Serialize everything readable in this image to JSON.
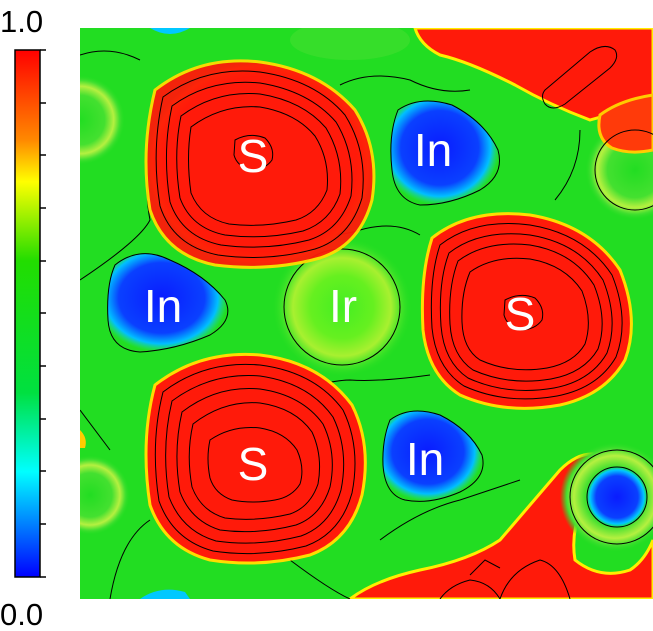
{
  "colorbar": {
    "max_label": "1.0",
    "min_label": "0.0",
    "range": [
      0.0,
      1.0
    ],
    "gradient_stops": [
      {
        "value": 0.0,
        "color": "#0000ff"
      },
      {
        "value": 0.2,
        "color": "#00ffff"
      },
      {
        "value": 0.35,
        "color": "#00e040"
      },
      {
        "value": 0.6,
        "color": "#22dd00"
      },
      {
        "value": 0.75,
        "color": "#ffff00"
      },
      {
        "value": 0.83,
        "color": "#ff8800"
      },
      {
        "value": 1.0,
        "color": "#ff0000"
      }
    ],
    "tick_count": 11
  },
  "map": {
    "background_color": "#22dd22",
    "high_color": "#ff1a0a",
    "low_color": "#0a28ff",
    "atoms": [
      {
        "label": "S",
        "type": "S"
      },
      {
        "label": "In",
        "type": "In"
      },
      {
        "label": "In",
        "type": "In"
      },
      {
        "label": "Ir",
        "type": "Ir"
      },
      {
        "label": "S",
        "type": "S"
      },
      {
        "label": "S",
        "type": "S"
      },
      {
        "label": "In",
        "type": "In"
      }
    ]
  }
}
